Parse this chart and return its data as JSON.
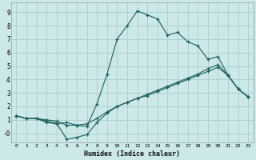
{
  "xlabel": "Humidex (Indice chaleur)",
  "bg_color": "#cce8e8",
  "grid_color": "#aacece",
  "line_color": "#1a6060",
  "xlim": [
    -0.5,
    23.5
  ],
  "ylim": [
    -0.7,
    9.7
  ],
  "xticks": [
    0,
    1,
    2,
    3,
    4,
    5,
    6,
    7,
    8,
    9,
    10,
    11,
    12,
    13,
    14,
    15,
    16,
    17,
    18,
    19,
    20,
    21,
    22,
    23
  ],
  "yticks": [
    0,
    1,
    2,
    3,
    4,
    5,
    6,
    7,
    8,
    9
  ],
  "ytick_labels": [
    "-0",
    "1",
    "2",
    "3",
    "4",
    "5",
    "6",
    "7",
    "8",
    "9"
  ],
  "line1_x": [
    0,
    1,
    2,
    3,
    4,
    5,
    6,
    7,
    8,
    9,
    10,
    11,
    12,
    13,
    14,
    15,
    16,
    17,
    18,
    19,
    20,
    21,
    22,
    23
  ],
  "line1_y": [
    1.3,
    1.1,
    1.1,
    0.8,
    0.7,
    0.8,
    0.6,
    0.5,
    2.2,
    4.4,
    7.0,
    8.0,
    9.1,
    8.8,
    8.5,
    7.3,
    7.5,
    6.8,
    6.5,
    5.5,
    5.7,
    4.3,
    3.3,
    2.7
  ],
  "line2_x": [
    0,
    1,
    2,
    3,
    4,
    5,
    6,
    7,
    8,
    9,
    10,
    11,
    12,
    13,
    14,
    15,
    16,
    17,
    18,
    19,
    20,
    21,
    22,
    23
  ],
  "line2_y": [
    1.3,
    1.1,
    1.1,
    0.9,
    0.75,
    -0.45,
    -0.3,
    -0.1,
    0.8,
    1.5,
    2.0,
    2.3,
    2.6,
    2.8,
    3.1,
    3.4,
    3.7,
    4.0,
    4.3,
    4.6,
    4.9,
    4.3,
    3.3,
    2.7
  ],
  "line3_x": [
    0,
    1,
    2,
    3,
    4,
    5,
    6,
    7,
    8,
    9,
    10,
    11,
    12,
    13,
    14,
    15,
    16,
    17,
    18,
    19,
    20,
    21,
    22,
    23
  ],
  "line3_y": [
    1.3,
    1.1,
    1.1,
    1.0,
    0.9,
    0.6,
    0.6,
    0.7,
    1.1,
    1.6,
    2.0,
    2.3,
    2.6,
    2.9,
    3.2,
    3.5,
    3.8,
    4.1,
    4.4,
    4.8,
    5.1,
    4.3,
    3.3,
    2.7
  ]
}
